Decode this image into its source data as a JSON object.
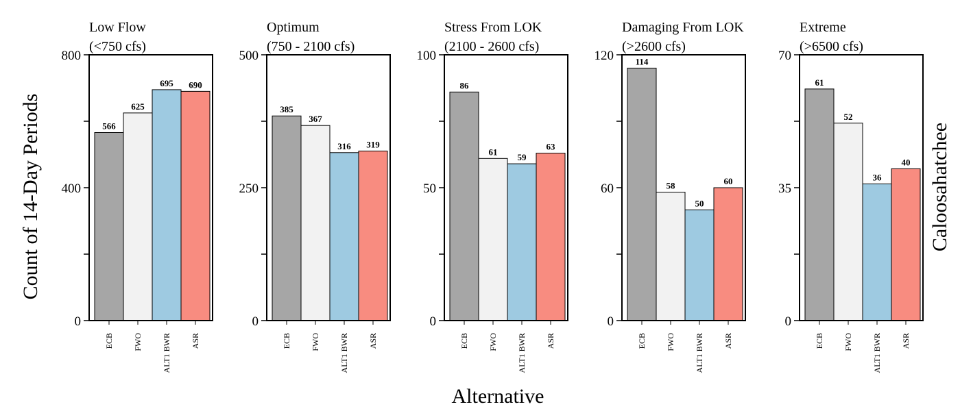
{
  "figure": {
    "ylabel": "Count of 14-Day Periods",
    "xlabel": "Alternative",
    "right_label": "Caloosahatchee"
  },
  "chart_data": [
    {
      "type": "bar",
      "title": "Low Flow",
      "subtitle": "(<750 cfs)",
      "categories": [
        "ECB",
        "FWO",
        "ALT1 BWR",
        "ASR"
      ],
      "values": [
        566,
        625,
        695,
        690
      ],
      "ylim": [
        0,
        800
      ],
      "yticks": [
        0,
        400,
        800
      ],
      "colors": [
        "#a6a6a6",
        "#f2f2f2",
        "#9ecae1",
        "#f88c80"
      ]
    },
    {
      "type": "bar",
      "title": "Optimum",
      "subtitle": "(750 - 2100 cfs)",
      "categories": [
        "ECB",
        "FWO",
        "ALT1 BWR",
        "ASR"
      ],
      "values": [
        385,
        367,
        316,
        319
      ],
      "ylim": [
        0,
        500
      ],
      "yticks": [
        0,
        250,
        500
      ],
      "colors": [
        "#a6a6a6",
        "#f2f2f2",
        "#9ecae1",
        "#f88c80"
      ]
    },
    {
      "type": "bar",
      "title": "Stress From LOK",
      "subtitle": "(2100 - 2600 cfs)",
      "categories": [
        "ECB",
        "FWO",
        "ALT1 BWR",
        "ASR"
      ],
      "values": [
        86,
        61,
        59,
        63
      ],
      "ylim": [
        0,
        100
      ],
      "yticks": [
        0,
        50,
        100
      ],
      "colors": [
        "#a6a6a6",
        "#f2f2f2",
        "#9ecae1",
        "#f88c80"
      ]
    },
    {
      "type": "bar",
      "title": "Damaging From LOK",
      "subtitle": "(>2600 cfs)",
      "categories": [
        "ECB",
        "FWO",
        "ALT1 BWR",
        "ASR"
      ],
      "values": [
        114,
        58,
        50,
        60
      ],
      "ylim": [
        0,
        120
      ],
      "yticks": [
        0,
        60,
        120
      ],
      "colors": [
        "#a6a6a6",
        "#f2f2f2",
        "#9ecae1",
        "#f88c80"
      ]
    },
    {
      "type": "bar",
      "title": "Extreme",
      "subtitle": "(>6500 cfs)",
      "categories": [
        "ECB",
        "FWO",
        "ALT1 BWR",
        "ASR"
      ],
      "values": [
        61,
        52,
        36,
        40
      ],
      "ylim": [
        0,
        70
      ],
      "yticks": [
        0,
        35,
        70
      ],
      "colors": [
        "#a6a6a6",
        "#f2f2f2",
        "#9ecae1",
        "#f88c80"
      ]
    }
  ]
}
